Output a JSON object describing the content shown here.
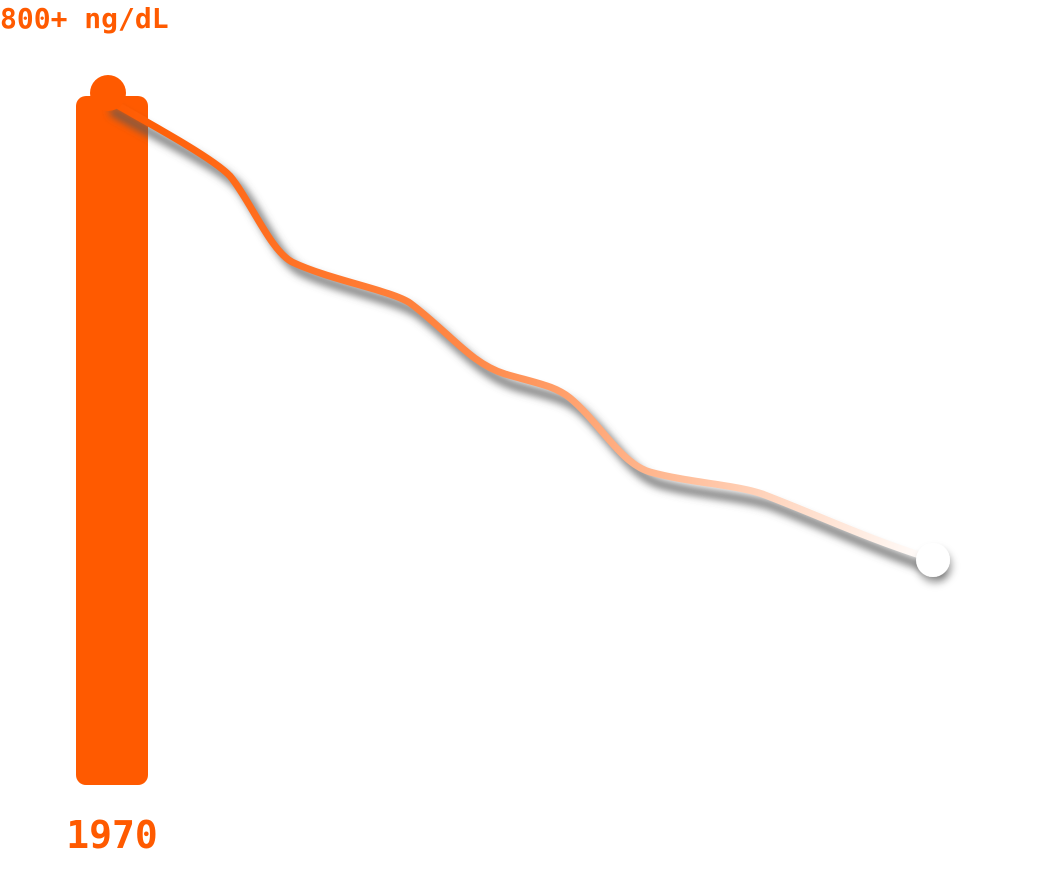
{
  "label": "800+ ng/dL",
  "year": "1970"
}
